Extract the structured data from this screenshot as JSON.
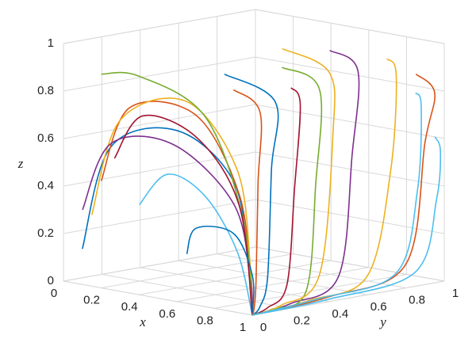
{
  "chart_data": {
    "type": "line3d",
    "xlabel": "x",
    "ylabel": "y",
    "zlabel": "z",
    "xlim": [
      0,
      1
    ],
    "ylim": [
      0,
      1
    ],
    "zlim": [
      0,
      1
    ],
    "xticks": [
      0,
      0.2,
      0.4,
      0.6,
      0.8,
      1
    ],
    "yticks": [
      0,
      0.2,
      0.4,
      0.6,
      0.8,
      1
    ],
    "zticks": [
      0,
      0.2,
      0.4,
      0.6,
      0.8,
      1
    ],
    "grid": true,
    "series": [
      {
        "color": "#0072bd",
        "x": [
          0.1,
          0.25,
          0.6,
          0.9,
          0.98,
          1
        ],
        "y": [
          0,
          0,
          0,
          0,
          0,
          0
        ],
        "z": [
          0.15,
          0.6,
          0.72,
          0.55,
          0.2,
          0.0
        ]
      },
      {
        "color": "#d95319",
        "x": [
          0.2,
          0.35,
          0.7,
          0.93,
          0.99,
          1
        ],
        "y": [
          0,
          0,
          0,
          0,
          0,
          0
        ],
        "z": [
          0.45,
          0.78,
          0.8,
          0.5,
          0.15,
          0.0
        ]
      },
      {
        "color": "#edb120",
        "x": [
          0.15,
          0.3,
          0.65,
          0.92,
          0.99,
          1
        ],
        "y": [
          0,
          0,
          0,
          0,
          0,
          0
        ],
        "z": [
          0.3,
          0.72,
          0.85,
          0.6,
          0.2,
          0.0
        ]
      },
      {
        "color": "#7e2f8e",
        "x": [
          0.05,
          0.2,
          0.55,
          0.88,
          0.98,
          1
        ],
        "y": [
          0.05,
          0.05,
          0.03,
          0.02,
          0.01,
          0
        ],
        "z": [
          0.3,
          0.6,
          0.65,
          0.45,
          0.15,
          0.0
        ]
      },
      {
        "color": "#77ac30",
        "x": [
          0.2,
          0.4,
          0.75,
          0.95,
          1
        ],
        "y": [
          0,
          0,
          0,
          0,
          0
        ],
        "z": [
          0.9,
          0.92,
          0.8,
          0.4,
          0.0
        ]
      },
      {
        "color": "#4dbeee",
        "x": [
          0.3,
          0.45,
          0.7,
          0.9,
          1
        ],
        "y": [
          0.1,
          0.1,
          0.05,
          0.02,
          0
        ],
        "z": [
          0.35,
          0.5,
          0.45,
          0.25,
          0.0
        ]
      },
      {
        "color": "#a2142f",
        "x": [
          0.25,
          0.4,
          0.7,
          0.92,
          1
        ],
        "y": [
          0.02,
          0.02,
          0.01,
          0.01,
          0
        ],
        "z": [
          0.55,
          0.75,
          0.7,
          0.45,
          0.0
        ]
      },
      {
        "color": "#0072bd",
        "x": [
          0.45,
          0.55,
          0.8,
          0.95,
          1
        ],
        "y": [
          0.2,
          0.15,
          0.1,
          0.05,
          0
        ],
        "z": [
          0.15,
          0.28,
          0.3,
          0.15,
          0.0
        ]
      },
      {
        "color": "#d95319",
        "x": [
          0.85,
          1,
          1,
          1,
          1,
          1
        ],
        "y": [
          1,
          0.95,
          0.9,
          0.8,
          0.4,
          0
        ],
        "z": [
          0.85,
          0.8,
          0.6,
          0.1,
          0.02,
          0.0
        ]
      },
      {
        "color": "#edb120",
        "x": [
          0.9,
          1,
          1,
          1,
          1,
          1
        ],
        "y": [
          0.8,
          0.75,
          0.72,
          0.6,
          0.3,
          0
        ],
        "z": [
          0.95,
          0.9,
          0.5,
          0.08,
          0.02,
          0.0
        ]
      },
      {
        "color": "#4dbeee",
        "x": [
          0.95,
          1,
          1,
          1,
          1,
          1
        ],
        "y": [
          1,
          0.98,
          0.96,
          0.85,
          0.4,
          0
        ],
        "z": [
          0.6,
          0.55,
          0.35,
          0.06,
          0.01,
          0.0
        ]
      },
      {
        "color": "#7e2f8e",
        "x": [
          0.8,
          1,
          1,
          1,
          1,
          1
        ],
        "y": [
          0.6,
          0.55,
          0.52,
          0.45,
          0.2,
          0
        ],
        "z": [
          1,
          0.95,
          0.6,
          0.1,
          0.02,
          0.0
        ]
      },
      {
        "color": "#77ac30",
        "x": [
          0.75,
          1,
          1,
          1,
          1,
          1
        ],
        "y": [
          0.4,
          0.35,
          0.33,
          0.28,
          0.1,
          0
        ],
        "z": [
          0.95,
          0.9,
          0.5,
          0.06,
          0.01,
          0.0
        ]
      },
      {
        "color": "#a2142f",
        "x": [
          0.9,
          1,
          1,
          1,
          1,
          1
        ],
        "y": [
          0.3,
          0.25,
          0.22,
          0.18,
          0.08,
          0
        ],
        "z": [
          0.9,
          0.85,
          0.5,
          0.1,
          0.02,
          0.0
        ]
      },
      {
        "color": "#0072bd",
        "x": [
          0.7,
          1,
          1,
          1,
          1,
          1
        ],
        "y": [
          0.15,
          0.12,
          0.1,
          0.08,
          0.04,
          0
        ],
        "z": [
          0.95,
          0.88,
          0.6,
          0.15,
          0.03,
          0.0
        ]
      },
      {
        "color": "#d95319",
        "x": [
          0.85,
          1,
          1,
          1,
          1,
          1
        ],
        "y": [
          0.05,
          0.04,
          0.03,
          0.02,
          0.01,
          0
        ],
        "z": [
          0.92,
          0.85,
          0.55,
          0.15,
          0.03,
          0.0
        ]
      },
      {
        "color": "#edb120",
        "x": [
          0.65,
          0.95,
          1,
          1,
          1,
          1
        ],
        "y": [
          0.5,
          0.45,
          0.42,
          0.35,
          0.15,
          0
        ],
        "z": [
          1,
          0.95,
          0.7,
          0.12,
          0.02,
          0.0
        ]
      },
      {
        "color": "#4dbeee",
        "x": [
          0.95,
          1,
          1,
          1,
          1,
          1
        ],
        "y": [
          0.9,
          0.88,
          0.86,
          0.75,
          0.35,
          0
        ],
        "z": [
          0.8,
          0.75,
          0.4,
          0.07,
          0.02,
          0.0
        ]
      }
    ]
  }
}
